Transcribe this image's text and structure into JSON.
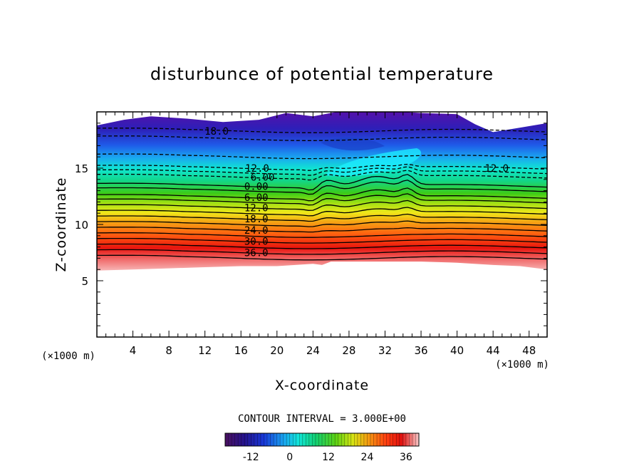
{
  "chart_data": {
    "type": "heatmap",
    "subtype": "filled contour",
    "title": "disturbunce of potential temperature",
    "xlabel": "X-coordinate",
    "ylabel": "Z-coordinate",
    "x_units": "(×1000 m)",
    "y_units": "(×1000 m)",
    "xlim": [
      0,
      50
    ],
    "ylim": [
      0,
      20
    ],
    "x_ticks": [
      4,
      8,
      12,
      16,
      20,
      24,
      28,
      32,
      36,
      40,
      44,
      48
    ],
    "y_ticks": [
      5,
      10,
      15
    ],
    "contour_interval_text": "CONTOUR INTERVAL = 3.000E+00",
    "contour_interval": 3.0,
    "colorbar": {
      "min": -20,
      "max": 40,
      "tick_values": [
        -12,
        0,
        12,
        24,
        36
      ],
      "tick_labels": [
        "-12",
        "0",
        "12",
        "24",
        "36"
      ]
    },
    "contour_labels": [
      {
        "text": "18.0",
        "x": 13.3,
        "z": 18.3
      },
      {
        "text": "12.0",
        "x": 17.8,
        "z": 15.0
      },
      {
        "text": "12.0",
        "x": 44.4,
        "z": 15.0
      },
      {
        "text": "6.00",
        "x": 18.4,
        "z": 14.2
      },
      {
        "text": "0.00",
        "x": 17.7,
        "z": 13.4
      },
      {
        "text": "6.00",
        "x": 17.7,
        "z": 12.4
      },
      {
        "text": "12.0",
        "x": 17.7,
        "z": 11.5
      },
      {
        "text": "18.0",
        "x": 17.7,
        "z": 10.5
      },
      {
        "text": "24.0",
        "x": 17.7,
        "z": 9.5
      },
      {
        "text": "30.0",
        "x": 17.7,
        "z": 8.5
      },
      {
        "text": "36.0",
        "x": 17.7,
        "z": 7.5
      }
    ],
    "notes": "Field is blank (white) below roughly z = 6 km; negative contours (dashed) aloft, positive contours (solid) in the lower stable layer."
  }
}
